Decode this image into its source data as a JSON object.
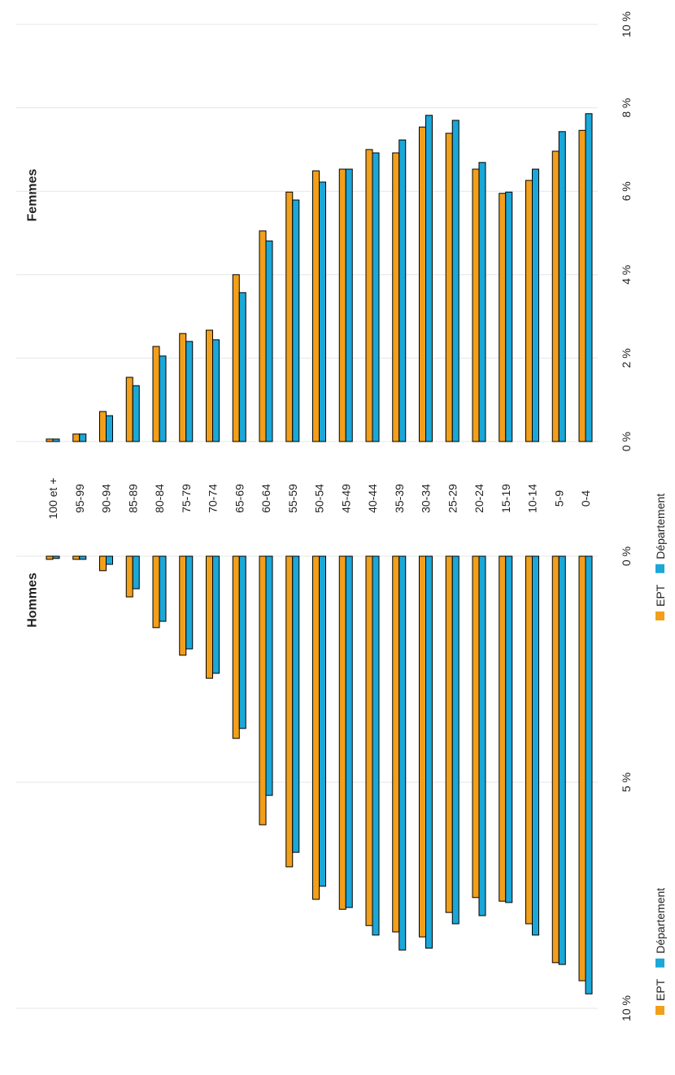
{
  "chart_data": [
    {
      "type": "bar",
      "title": "Hommes",
      "categories": [
        "100 et +",
        "95-99",
        "90-94",
        "85-89",
        "80-84",
        "75-79",
        "70-74",
        "65-69",
        "60-64",
        "55-59",
        "50-54",
        "45-49",
        "40-44",
        "35-39",
        "30-34",
        "25-29",
        "20-24",
        "15-19",
        "10-14",
        "5-9",
        "0-4"
      ],
      "series": [
        {
          "name": "EPT",
          "color": "#f29f1c",
          "values": [
            0.07,
            0.07,
            0.32,
            0.9,
            1.58,
            2.19,
            2.7,
            4.03,
            5.94,
            6.87,
            7.59,
            7.81,
            8.17,
            8.31,
            8.42,
            7.88,
            7.55,
            7.63,
            8.13,
            8.99,
            9.39
          ]
        },
        {
          "name": "Département",
          "color": "#1ba7d8",
          "values": [
            0.05,
            0.07,
            0.18,
            0.72,
            1.44,
            2.05,
            2.59,
            3.81,
            5.29,
            6.55,
            7.3,
            7.77,
            8.38,
            8.71,
            8.67,
            8.13,
            7.95,
            7.66,
            8.38,
            9.03,
            9.68
          ]
        }
      ],
      "xlim": [
        0,
        10
      ],
      "x_reversed": true,
      "xticks": [
        {
          "value": 0,
          "label": "0 %"
        },
        {
          "value": 5,
          "label": "5 %"
        },
        {
          "value": 10,
          "label": "10 %"
        }
      ],
      "grid": true
    },
    {
      "type": "bar",
      "title": "Femmes",
      "categories": [
        "100 et +",
        "95-99",
        "90-94",
        "85-89",
        "80-84",
        "75-79",
        "70-74",
        "65-69",
        "60-64",
        "55-59",
        "50-54",
        "45-49",
        "40-44",
        "35-39",
        "30-34",
        "25-29",
        "20-24",
        "15-19",
        "10-14",
        "5-9",
        "0-4"
      ],
      "series": [
        {
          "name": "EPT",
          "color": "#f29f1c",
          "values": [
            0.06,
            0.18,
            0.72,
            1.54,
            2.28,
            2.59,
            2.67,
            4.0,
            5.05,
            5.98,
            6.49,
            6.53,
            7.0,
            6.92,
            7.54,
            7.39,
            6.53,
            5.95,
            6.26,
            6.96,
            7.46
          ]
        },
        {
          "name": "Département",
          "color": "#1ba7d8",
          "values": [
            0.06,
            0.18,
            0.62,
            1.34,
            2.05,
            2.4,
            2.44,
            3.57,
            4.81,
            5.79,
            6.22,
            6.53,
            6.92,
            7.23,
            7.82,
            7.7,
            6.69,
            5.98,
            6.53,
            7.43,
            7.86
          ]
        }
      ],
      "xlim": [
        0,
        10
      ],
      "x_reversed": false,
      "xticks": [
        {
          "value": 0,
          "label": "0 %"
        },
        {
          "value": 2,
          "label": "2 %"
        },
        {
          "value": 4,
          "label": "4 %"
        },
        {
          "value": 6,
          "label": "6 %"
        },
        {
          "value": 8,
          "label": "8 %"
        },
        {
          "value": 10,
          "label": "10 %"
        }
      ],
      "grid": true
    }
  ]
}
